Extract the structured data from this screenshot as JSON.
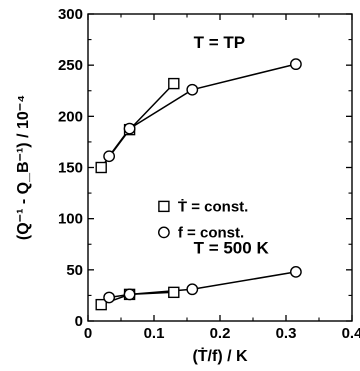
{
  "chart_data": {
    "type": "line",
    "xlabel": "(Ṫ/f) / K",
    "ylabel": "(Q⁻¹ - Q_B⁻¹) / 10⁻⁴",
    "xlim": [
      0,
      0.4
    ],
    "ylim": [
      0,
      300
    ],
    "x_ticks": [
      0,
      0.1,
      0.2,
      0.3,
      0.4
    ],
    "x_tick_labels": [
      "0",
      "0.1",
      "0.2",
      "0.3",
      "0.4"
    ],
    "y_ticks": [
      0,
      50,
      100,
      150,
      200,
      250,
      300
    ],
    "y_tick_labels": [
      "0",
      "50",
      "100",
      "150",
      "200",
      "250",
      "300"
    ],
    "grid": false,
    "legend": {
      "placement": "middle-right",
      "entries": [
        {
          "marker": "square",
          "label": "Ṫ = const."
        },
        {
          "marker": "circle",
          "label": "f = const."
        }
      ]
    },
    "annotations": [
      {
        "text": "T = TP",
        "at": [
          0.16,
          267
        ]
      },
      {
        "text": "T = 500 K",
        "at": [
          0.16,
          66
        ]
      }
    ],
    "series": [
      {
        "marker": "square",
        "group": "T = TP",
        "x": [
          0.02,
          0.063,
          0.13
        ],
        "y": [
          150,
          187,
          232
        ]
      },
      {
        "marker": "circle",
        "group": "T = TP",
        "x": [
          0.032,
          0.063,
          0.158,
          0.315
        ],
        "y": [
          161,
          188,
          226,
          251
        ]
      },
      {
        "marker": "square",
        "group": "T = 500 K",
        "x": [
          0.02,
          0.063,
          0.13
        ],
        "y": [
          16,
          26,
          28
        ]
      },
      {
        "marker": "circle",
        "group": "T = 500 K",
        "x": [
          0.032,
          0.063,
          0.158,
          0.315
        ],
        "y": [
          23,
          26,
          31,
          48
        ]
      }
    ]
  }
}
